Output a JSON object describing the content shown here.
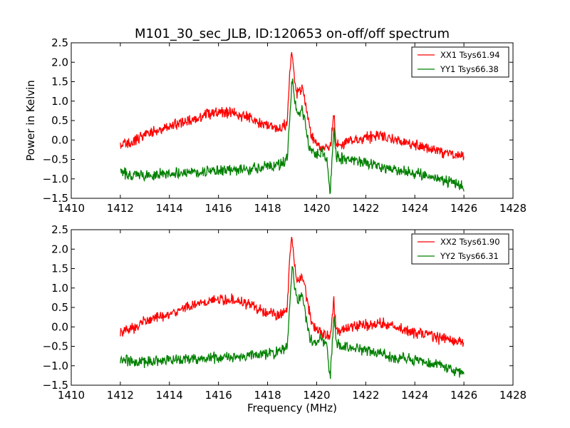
{
  "title": "M101_30_sec_JLB, ID:120653 on-off/off spectrum",
  "xlabel": "Frequency (MHz)",
  "ylabel": "Power in Kelvin",
  "colors": {
    "xx": "#ff0000",
    "yy": "#008000"
  },
  "chart_data": [
    {
      "type": "line",
      "title": "M101_30_sec_JLB, ID:120653 on-off/off spectrum",
      "xlabel": "",
      "ylabel": "Power in Kelvin",
      "xlim": [
        1410,
        1428
      ],
      "ylim": [
        -1.5,
        2.5
      ],
      "xticks": [
        "1410",
        "1412",
        "1414",
        "1416",
        "1418",
        "1420",
        "1422",
        "1424",
        "1426",
        "1428"
      ],
      "yticks": [
        "2.5",
        "2.0",
        "1.5",
        "1.0",
        "0.5",
        "0.0",
        "−0.5",
        "−1.0",
        "−1.5"
      ],
      "legend_position": "top-right",
      "grid": false,
      "series": [
        {
          "name": "XX1 Tsys61.94",
          "color": "#ff0000",
          "x": [
            1412.0,
            1412.5,
            1413.0,
            1413.5,
            1414.0,
            1414.5,
            1415.0,
            1415.5,
            1416.0,
            1416.5,
            1417.0,
            1417.5,
            1418.0,
            1418.5,
            1418.8,
            1418.9,
            1419.0,
            1419.1,
            1419.2,
            1419.3,
            1419.4,
            1419.5,
            1419.6,
            1419.7,
            1419.8,
            1420.0,
            1420.2,
            1420.4,
            1420.55,
            1420.7,
            1420.8,
            1420.9,
            1421.2,
            1421.5,
            1422.0,
            1422.5,
            1423.0,
            1423.5,
            1424.0,
            1424.5,
            1425.0,
            1425.5,
            1426.0
          ],
          "y": [
            -0.15,
            -0.05,
            0.15,
            0.25,
            0.35,
            0.45,
            0.55,
            0.65,
            0.72,
            0.7,
            0.62,
            0.5,
            0.38,
            0.3,
            0.45,
            1.8,
            2.3,
            1.6,
            1.2,
            1.25,
            1.35,
            1.1,
            0.7,
            0.4,
            0.1,
            -0.1,
            -0.15,
            -0.2,
            -0.25,
            0.7,
            -0.1,
            -0.15,
            -0.05,
            0.0,
            0.05,
            0.1,
            0.05,
            -0.05,
            -0.15,
            -0.2,
            -0.3,
            -0.35,
            -0.4
          ]
        },
        {
          "name": "YY1 Tsys66.38",
          "color": "#008000",
          "x": [
            1412.0,
            1412.5,
            1413.0,
            1413.5,
            1414.0,
            1414.5,
            1415.0,
            1415.5,
            1416.0,
            1416.5,
            1417.0,
            1417.5,
            1418.0,
            1418.5,
            1418.8,
            1418.9,
            1419.0,
            1419.1,
            1419.2,
            1419.3,
            1419.4,
            1419.5,
            1419.6,
            1419.7,
            1419.8,
            1420.0,
            1420.2,
            1420.4,
            1420.55,
            1420.7,
            1420.8,
            1420.9,
            1421.2,
            1421.5,
            1422.0,
            1422.5,
            1423.0,
            1423.5,
            1424.0,
            1424.5,
            1425.0,
            1425.5,
            1426.0
          ],
          "y": [
            -0.85,
            -0.88,
            -0.9,
            -0.88,
            -0.85,
            -0.83,
            -0.82,
            -0.8,
            -0.8,
            -0.78,
            -0.76,
            -0.72,
            -0.7,
            -0.65,
            -0.5,
            0.5,
            1.6,
            1.1,
            0.65,
            0.7,
            0.8,
            0.55,
            0.1,
            -0.2,
            -0.35,
            -0.4,
            -0.3,
            -0.45,
            -1.35,
            0.3,
            -0.4,
            -0.45,
            -0.5,
            -0.55,
            -0.6,
            -0.68,
            -0.75,
            -0.8,
            -0.85,
            -0.9,
            -1.0,
            -1.1,
            -1.2
          ]
        }
      ]
    },
    {
      "type": "line",
      "title": "",
      "xlabel": "Frequency (MHz)",
      "ylabel": "",
      "xlim": [
        1410,
        1428
      ],
      "ylim": [
        -1.5,
        2.5
      ],
      "xticks": [
        "1410",
        "1412",
        "1414",
        "1416",
        "1418",
        "1420",
        "1422",
        "1424",
        "1426",
        "1428"
      ],
      "yticks": [
        "2.5",
        "2.0",
        "1.5",
        "1.0",
        "0.5",
        "0.0",
        "−0.5",
        "−1.0",
        "−1.5"
      ],
      "legend_position": "top-right",
      "grid": false,
      "series": [
        {
          "name": "XX2 Tsys61.90",
          "color": "#ff0000",
          "x": [
            1412.0,
            1412.5,
            1413.0,
            1413.5,
            1414.0,
            1414.5,
            1415.0,
            1415.5,
            1416.0,
            1416.5,
            1417.0,
            1417.5,
            1418.0,
            1418.5,
            1418.8,
            1418.9,
            1419.0,
            1419.1,
            1419.2,
            1419.3,
            1419.4,
            1419.5,
            1419.6,
            1419.7,
            1419.8,
            1420.0,
            1420.2,
            1420.4,
            1420.55,
            1420.7,
            1420.8,
            1420.9,
            1421.2,
            1421.5,
            1422.0,
            1422.5,
            1423.0,
            1423.5,
            1424.0,
            1424.5,
            1425.0,
            1425.5,
            1426.0
          ],
          "y": [
            -0.15,
            -0.05,
            0.15,
            0.25,
            0.35,
            0.45,
            0.55,
            0.65,
            0.72,
            0.7,
            0.62,
            0.5,
            0.38,
            0.3,
            0.45,
            1.8,
            2.3,
            1.6,
            1.2,
            1.25,
            1.35,
            1.1,
            0.7,
            0.4,
            0.1,
            -0.1,
            -0.15,
            -0.2,
            -0.25,
            0.7,
            -0.1,
            -0.15,
            -0.05,
            0.0,
            0.05,
            0.1,
            0.05,
            -0.05,
            -0.15,
            -0.2,
            -0.3,
            -0.35,
            -0.4
          ]
        },
        {
          "name": "YY2 Tsys66.31",
          "color": "#008000",
          "x": [
            1412.0,
            1412.5,
            1413.0,
            1413.5,
            1414.0,
            1414.5,
            1415.0,
            1415.5,
            1416.0,
            1416.5,
            1417.0,
            1417.5,
            1418.0,
            1418.5,
            1418.8,
            1418.9,
            1419.0,
            1419.1,
            1419.2,
            1419.3,
            1419.4,
            1419.5,
            1419.6,
            1419.7,
            1419.8,
            1420.0,
            1420.2,
            1420.4,
            1420.55,
            1420.7,
            1420.8,
            1420.9,
            1421.2,
            1421.5,
            1422.0,
            1422.5,
            1423.0,
            1423.5,
            1424.0,
            1424.5,
            1425.0,
            1425.5,
            1426.0
          ],
          "y": [
            -0.85,
            -0.88,
            -0.9,
            -0.88,
            -0.85,
            -0.83,
            -0.82,
            -0.8,
            -0.8,
            -0.78,
            -0.76,
            -0.72,
            -0.7,
            -0.65,
            -0.5,
            0.5,
            1.6,
            1.1,
            0.65,
            0.7,
            0.8,
            0.55,
            0.1,
            -0.2,
            -0.35,
            -0.4,
            -0.3,
            -0.45,
            -1.35,
            0.3,
            -0.4,
            -0.45,
            -0.5,
            -0.55,
            -0.6,
            -0.68,
            -0.75,
            -0.8,
            -0.85,
            -0.9,
            -1.0,
            -1.1,
            -1.2
          ]
        }
      ]
    }
  ]
}
